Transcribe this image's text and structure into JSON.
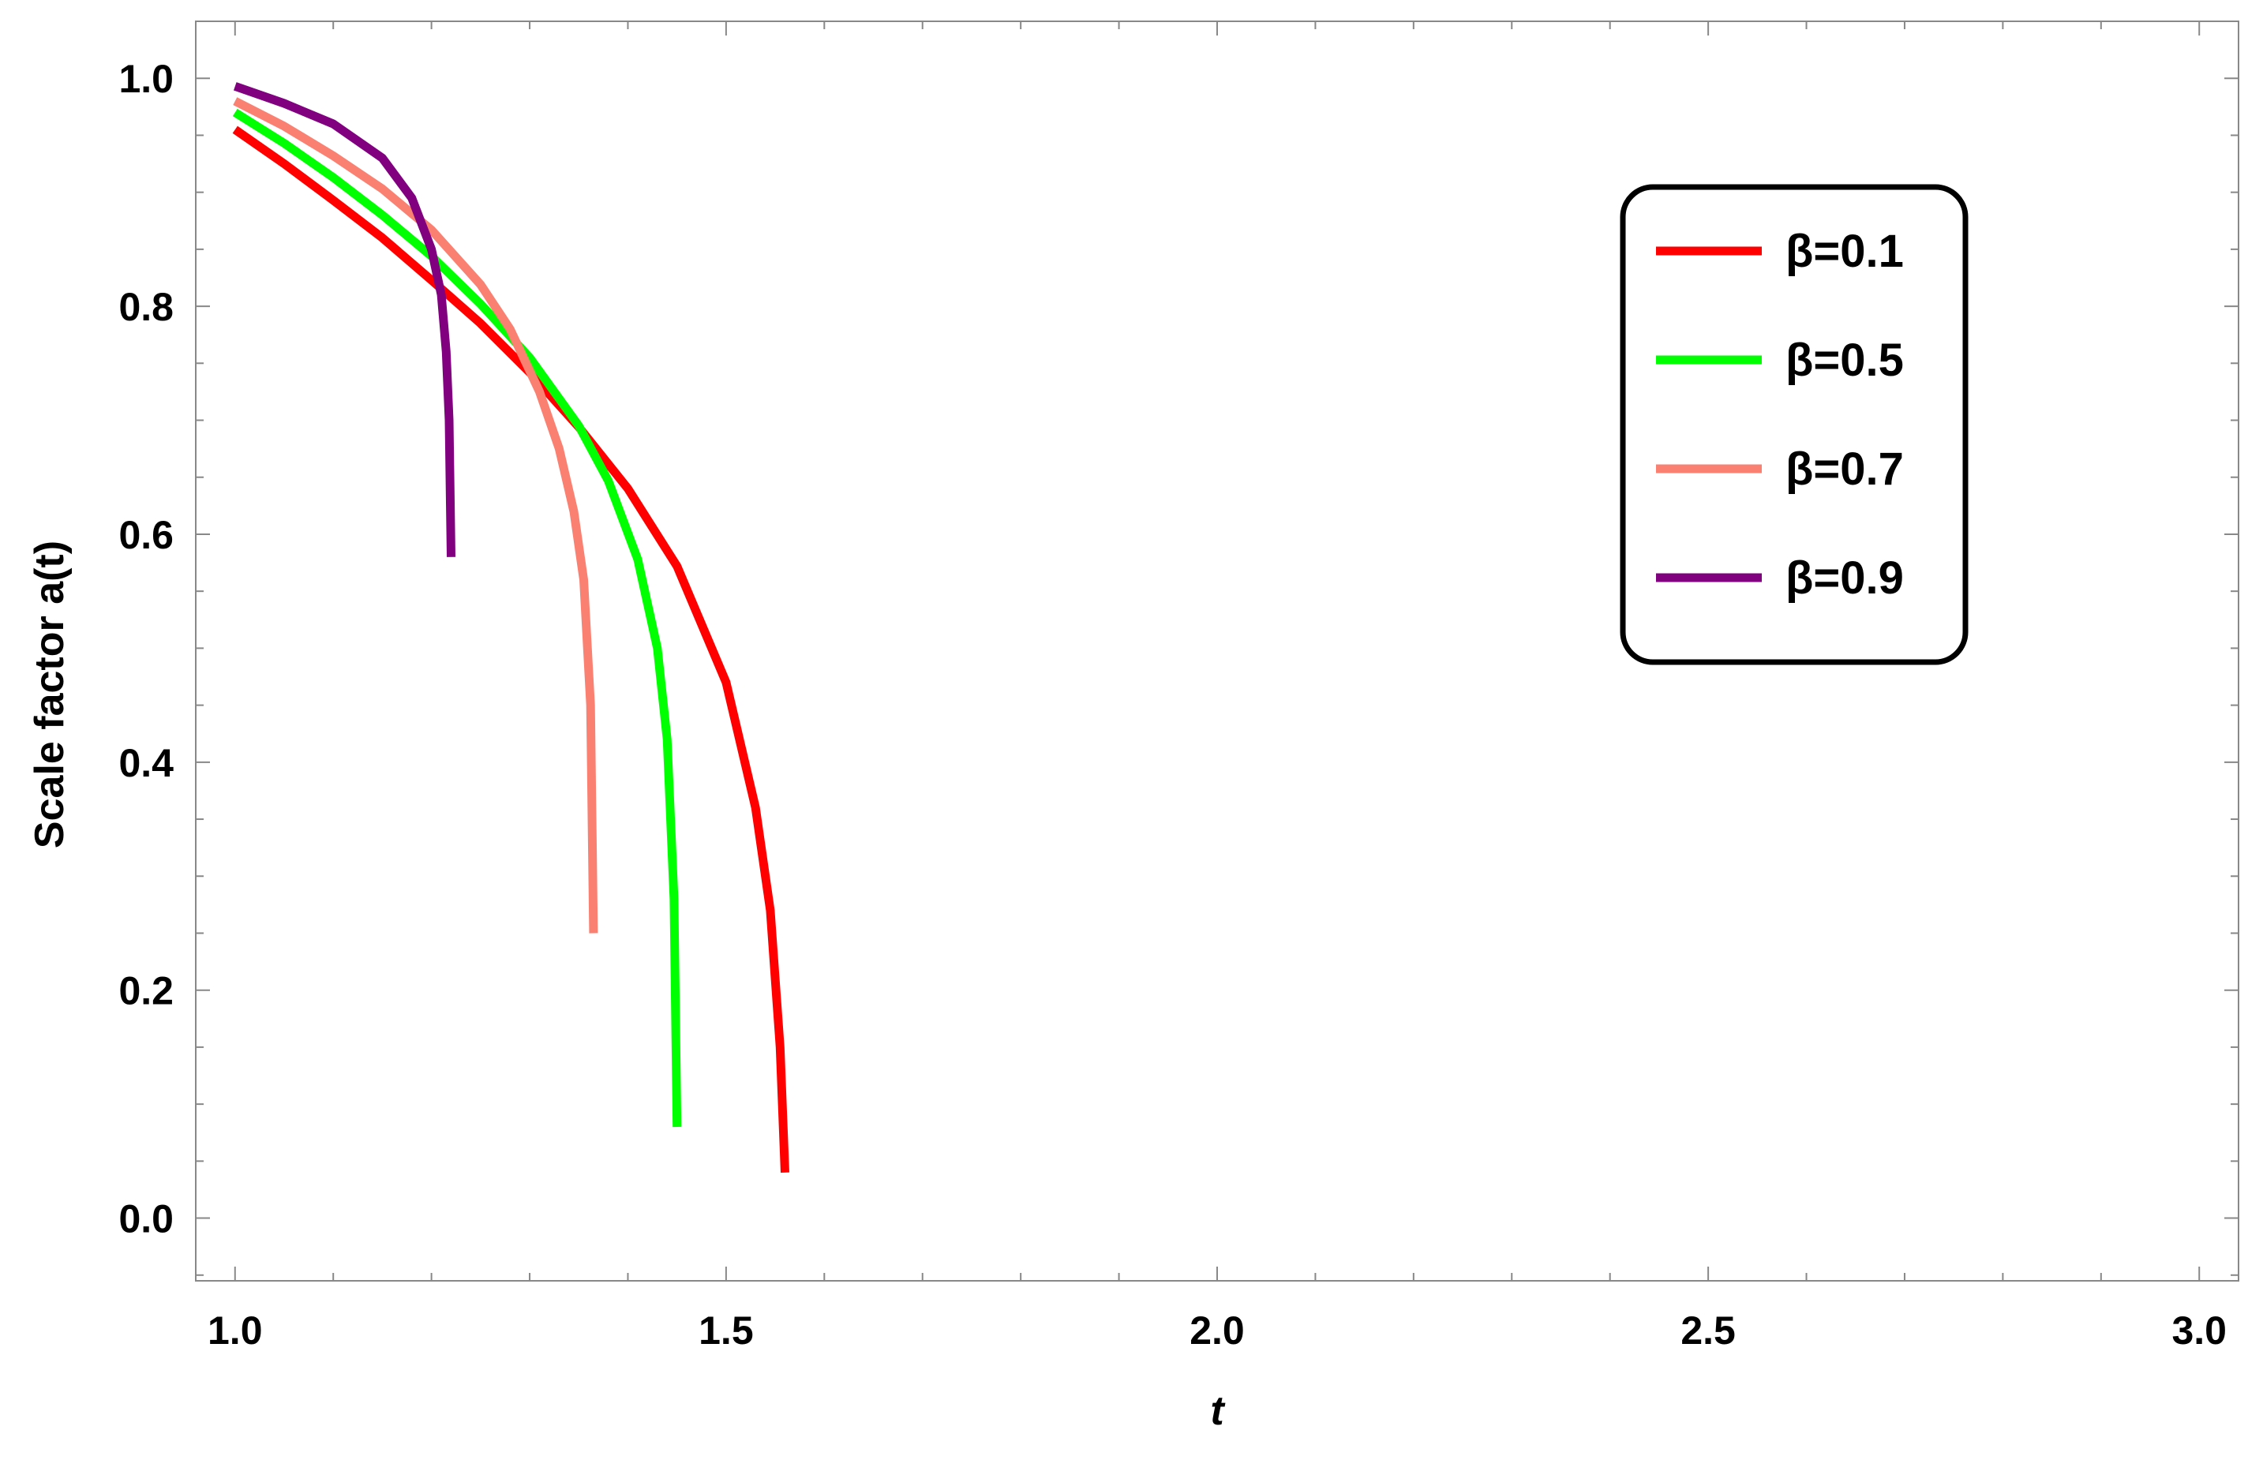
{
  "chart_data": {
    "type": "line",
    "xlabel": "t",
    "ylabel": "Scale factor a(t)",
    "xlim": [
      0.96,
      3.04
    ],
    "ylim": [
      -0.055,
      1.05
    ],
    "xticks": [
      "1.0",
      "1.5",
      "2.0",
      "2.5",
      "3.0"
    ],
    "yticks": [
      "0.0",
      "0.2",
      "0.4",
      "0.6",
      "0.8",
      "1.0"
    ],
    "grid": false,
    "legend_position": "top-right",
    "series": [
      {
        "name": "β=0.1",
        "color": "#ff0000",
        "x": [
          1.0,
          1.05,
          1.1,
          1.15,
          1.2,
          1.25,
          1.3,
          1.35,
          1.4,
          1.45,
          1.5,
          1.53,
          1.545,
          1.555,
          1.56
        ],
        "y": [
          0.955,
          0.925,
          0.893,
          0.86,
          0.823,
          0.785,
          0.742,
          0.694,
          0.64,
          0.572,
          0.47,
          0.36,
          0.27,
          0.15,
          0.04
        ]
      },
      {
        "name": "β=0.5",
        "color": "#00ff00",
        "x": [
          1.0,
          1.05,
          1.1,
          1.15,
          1.2,
          1.25,
          1.3,
          1.35,
          1.38,
          1.41,
          1.43,
          1.44,
          1.447,
          1.45
        ],
        "y": [
          0.97,
          0.943,
          0.913,
          0.88,
          0.844,
          0.802,
          0.755,
          0.695,
          0.647,
          0.578,
          0.5,
          0.42,
          0.28,
          0.08
        ]
      },
      {
        "name": "β=0.7",
        "color": "#fa8072",
        "x": [
          1.0,
          1.05,
          1.1,
          1.15,
          1.2,
          1.25,
          1.28,
          1.31,
          1.33,
          1.345,
          1.355,
          1.362,
          1.365
        ],
        "y": [
          0.98,
          0.958,
          0.932,
          0.903,
          0.867,
          0.819,
          0.78,
          0.725,
          0.675,
          0.62,
          0.56,
          0.45,
          0.25
        ]
      },
      {
        "name": "β=0.9",
        "color": "#800080",
        "x": [
          1.0,
          1.05,
          1.1,
          1.15,
          1.18,
          1.2,
          1.21,
          1.215,
          1.218,
          1.22
        ],
        "y": [
          0.993,
          0.978,
          0.96,
          0.93,
          0.895,
          0.85,
          0.81,
          0.76,
          0.7,
          0.58
        ]
      }
    ]
  }
}
